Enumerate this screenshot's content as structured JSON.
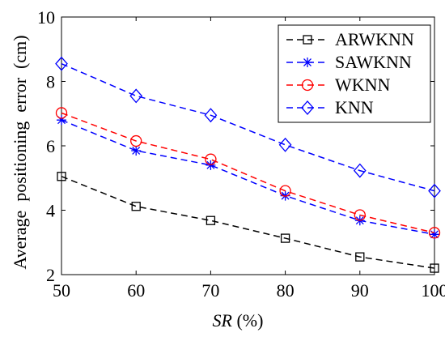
{
  "chart_data": {
    "type": "line",
    "title": "",
    "xlabel": {
      "italic": "SR",
      "rest": " (%)"
    },
    "ylabel": "Average  positioning  error  (cm)",
    "x": [
      50,
      60,
      70,
      80,
      90,
      100
    ],
    "xlim": [
      50,
      100
    ],
    "ylim": [
      2,
      10
    ],
    "xticks": [
      50,
      60,
      70,
      80,
      90,
      100
    ],
    "yticks": [
      2,
      4,
      6,
      8,
      10
    ],
    "grid": false,
    "legend_position": "top-right",
    "series": [
      {
        "name": "ARWKNN",
        "marker": "square",
        "color": "#000000",
        "values": [
          5.05,
          4.12,
          3.68,
          3.13,
          2.55,
          2.2
        ]
      },
      {
        "name": "SAWKNN",
        "marker": "asterisk",
        "color": "#0000ff",
        "values": [
          6.8,
          5.85,
          5.4,
          4.45,
          3.68,
          3.25
        ]
      },
      {
        "name": "WKNN",
        "marker": "circle",
        "color": "#ff0000",
        "values": [
          7.02,
          6.15,
          5.58,
          4.6,
          3.85,
          3.3
        ]
      },
      {
        "name": "KNN",
        "marker": "diamond",
        "color": "#0000ff",
        "values": [
          8.55,
          7.55,
          6.95,
          6.03,
          5.23,
          4.6
        ]
      }
    ]
  }
}
